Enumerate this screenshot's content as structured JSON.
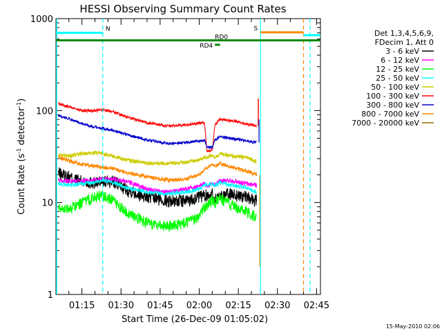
{
  "chart_data": {
    "type": "line",
    "title": "HESSI Observing Summary Count Rates",
    "xlabel": "Start Time (26-Dec-09 01:05:02)",
    "ylabel_main": "Count Rate (s",
    "ylabel_sup1": "-1",
    "ylabel_mid": " detector",
    "ylabel_sup2": "-1",
    "ylabel_end": ")",
    "yscale": "log",
    "xlim": [
      "01:05:02",
      "02:46:30"
    ],
    "ylim": [
      1,
      1000
    ],
    "xticks": [
      "01:15",
      "01:30",
      "01:45",
      "02:00",
      "02:15",
      "02:30",
      "02:45"
    ],
    "yticks": [
      "1",
      "10",
      "100",
      "1000"
    ],
    "legend_position": "right",
    "legend_header": [
      "Det 1,3,4,5,6,9,",
      "FDecim 1, Att 0"
    ],
    "x_knots": [
      "01:06",
      "01:10",
      "01:15",
      "01:20",
      "01:23",
      "01:27",
      "01:32",
      "01:40",
      "01:48",
      "01:55",
      "02:00",
      "02:02",
      "02:03",
      "02:05",
      "02:06",
      "02:08",
      "02:12",
      "02:18",
      "02:22"
    ],
    "series": [
      {
        "name": "3 - 6 keV",
        "color": "#000000",
        "values": [
          21,
          19,
          17,
          16.5,
          17,
          17,
          14,
          11.5,
          10.5,
          10.5,
          11.5,
          12,
          12,
          12.5,
          11,
          12,
          12.5,
          11.5,
          10.5
        ]
      },
      {
        "name": "6 - 12 keV",
        "color": "#ff00ff",
        "values": [
          17.5,
          17,
          17,
          17.5,
          18,
          18,
          17,
          14,
          13,
          14,
          15,
          16,
          15,
          16,
          15.5,
          17,
          17.5,
          16,
          15.5
        ]
      },
      {
        "name": "12 - 25 keV",
        "color": "#00ff00",
        "values": [
          9,
          8.5,
          10,
          11.5,
          12,
          10.5,
          8,
          6,
          5.5,
          6,
          7,
          9,
          9.5,
          10.5,
          10,
          11,
          9.5,
          8,
          7
        ]
      },
      {
        "name": "25 - 50 keV",
        "color": "#00ffff",
        "values": [
          16,
          15.5,
          16,
          16.5,
          17.5,
          16.5,
          14.5,
          13,
          12.5,
          13,
          14,
          15.5,
          15.5,
          16,
          15,
          16.5,
          15.5,
          14.5,
          13
        ]
      },
      {
        "name": "50 - 100 keV",
        "color": "#cccc00",
        "values": [
          33,
          32,
          34,
          34.5,
          34,
          32,
          29,
          27,
          26.5,
          27.5,
          29,
          31,
          31,
          33,
          31,
          34,
          32,
          31,
          28
        ]
      },
      {
        "name": "100 - 300 keV",
        "color": "#ff0000",
        "values": [
          120,
          110,
          100,
          100,
          102,
          97,
          85,
          74,
          68,
          70,
          73,
          74,
          36,
          37,
          70,
          80,
          78,
          72,
          68
        ]
      },
      {
        "name": "300 - 800 keV",
        "color": "#0000cc",
        "values": [
          88,
          82,
          72,
          66,
          64,
          61,
          55,
          48,
          44,
          45,
          47,
          48,
          40,
          40,
          48,
          52,
          50,
          47,
          45
        ]
      },
      {
        "name": "800 - 7000 keV",
        "color": "#ff8800",
        "values": [
          31,
          28.5,
          26,
          25,
          24,
          23.5,
          21,
          19,
          17.5,
          18,
          20,
          23,
          24,
          26,
          25,
          26.5,
          24.5,
          22,
          20
        ]
      },
      {
        "name": "7000 - 20000 keV",
        "color": "#996600",
        "values": []
      }
    ],
    "annotations": {
      "bars": [
        {
          "label": "N",
          "color": "#00ffff",
          "x_start": "01:05:02",
          "x_end": "01:23:00",
          "y": 700
        },
        {
          "label": "S",
          "color": "#ff8800",
          "x_start": "02:23:30",
          "x_end": "02:40:00",
          "y": 710
        },
        {
          "label": "",
          "color": "#00ffff",
          "x_start": "02:40:00",
          "x_end": "02:46:30",
          "y": 660
        },
        {
          "label": "RD0",
          "color": "#008800",
          "x_start": "01:05:02",
          "x_end": "02:46:30",
          "y": 580
        },
        {
          "label": "RD4",
          "color": "#008800",
          "x_start": "02:06:00",
          "x_end": "02:08:00",
          "y": 520
        }
      ],
      "vlines": [
        {
          "x": "01:23:00",
          "color": "#00ffff",
          "style": "dashed"
        },
        {
          "x": "02:23:30",
          "color": "#00ffff",
          "style": "solid"
        },
        {
          "x": "02:40:00",
          "color": "#ff8800",
          "style": "dashed"
        },
        {
          "x": "02:42:30",
          "color": "#00ffff",
          "style": "dashed"
        }
      ]
    },
    "footer": "15-May-2010 02:06"
  }
}
